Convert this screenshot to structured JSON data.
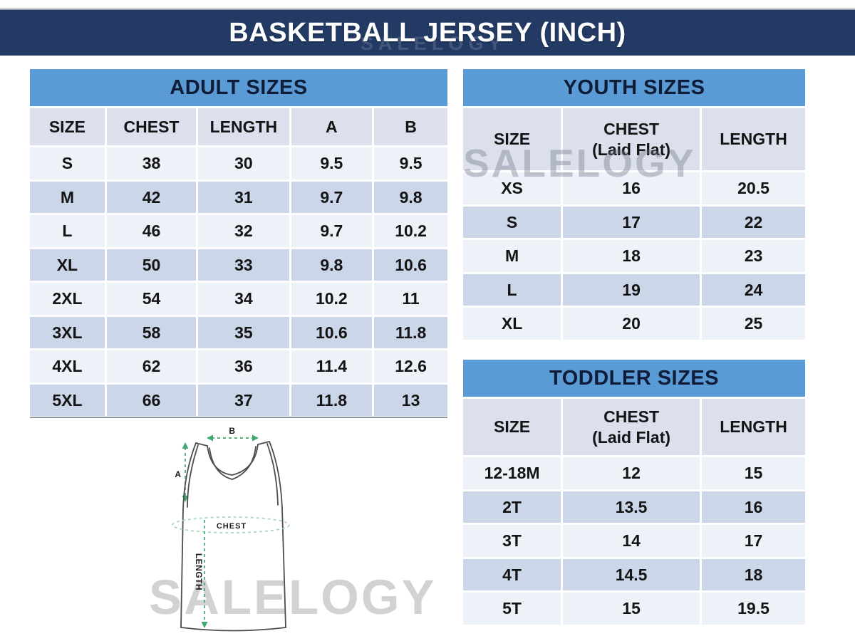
{
  "title": "BASKETBALL JERSEY (INCH)",
  "watermarks": {
    "brand": "SALELOGY"
  },
  "theme": {
    "navy": "#223A64",
    "header_blue": "#5B9BD5",
    "header_text": "#0E1C38",
    "col_header_bg": "#DCE0ED",
    "row_light": "#EDF1F8",
    "row_dark": "#CBD6E8",
    "text": "#141414",
    "green": "#3FA96F",
    "pale_green": "#A6D7B6",
    "outline": "#4D4D4D"
  },
  "chart_data": [
    {
      "type": "table",
      "title": "ADULT SIZES",
      "columns": [
        "SIZE",
        "CHEST",
        "LENGTH",
        "A",
        "B"
      ],
      "rows": [
        [
          "S",
          "38",
          "30",
          "9.5",
          "9.5"
        ],
        [
          "M",
          "42",
          "31",
          "9.7",
          "9.8"
        ],
        [
          "L",
          "46",
          "32",
          "9.7",
          "10.2"
        ],
        [
          "XL",
          "50",
          "33",
          "9.8",
          "10.6"
        ],
        [
          "2XL",
          "54",
          "34",
          "10.2",
          "11"
        ],
        [
          "3XL",
          "58",
          "35",
          "10.6",
          "11.8"
        ],
        [
          "4XL",
          "62",
          "36",
          "11.4",
          "12.6"
        ],
        [
          "5XL",
          "66",
          "37",
          "11.8",
          "13"
        ]
      ]
    },
    {
      "type": "table",
      "title": "YOUTH SIZES",
      "columns": [
        "SIZE",
        "CHEST\n(Laid Flat)",
        "LENGTH"
      ],
      "rows": [
        [
          "XS",
          "16",
          "20.5"
        ],
        [
          "S",
          "17",
          "22"
        ],
        [
          "M",
          "18",
          "23"
        ],
        [
          "L",
          "19",
          "24"
        ],
        [
          "XL",
          "20",
          "25"
        ]
      ]
    },
    {
      "type": "table",
      "title": "TODDLER SIZES",
      "columns": [
        "SIZE",
        "CHEST\n(Laid Flat)",
        "LENGTH"
      ],
      "rows": [
        [
          "12-18M",
          "12",
          "15"
        ],
        [
          "2T",
          "13.5",
          "16"
        ],
        [
          "3T",
          "14",
          "17"
        ],
        [
          "4T",
          "14.5",
          "18"
        ],
        [
          "5T",
          "15",
          "19.5"
        ]
      ]
    }
  ],
  "diagram": {
    "label_a": "A",
    "label_b": "B",
    "label_chest": "CHEST",
    "label_length": "LENGTH"
  }
}
